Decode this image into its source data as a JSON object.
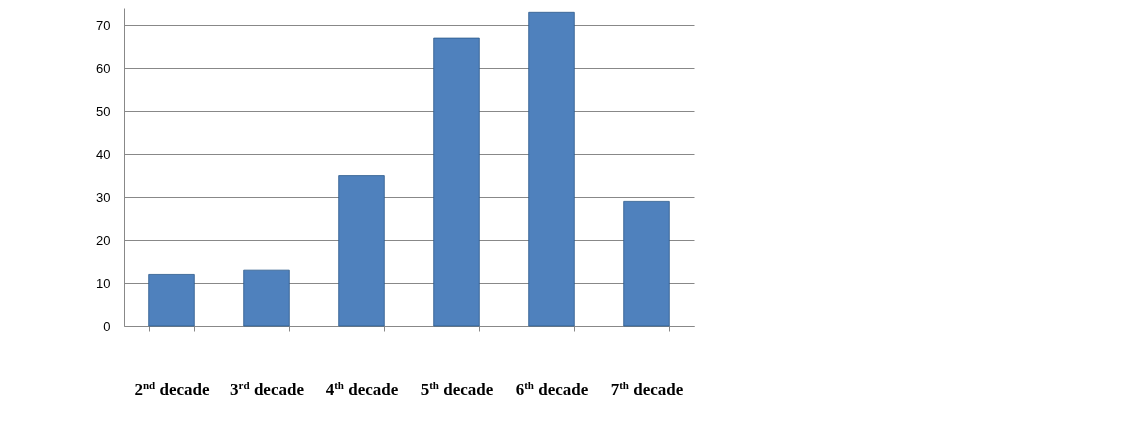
{
  "chart_data": {
    "type": "bar",
    "categories": [
      "2$^{nd}$ decade",
      "3$^{rd}$ decade",
      "4$^{th}$ decade",
      "5$^{th}$ decade",
      "6$^{th}$ decade",
      "7$^{th}$ decade"
    ],
    "values": [
      12,
      13,
      35,
      67,
      73,
      29
    ],
    "color": "#4f81bd",
    "ylim": [
      0,
      74
    ],
    "yticks": [
      0,
      10,
      20,
      30,
      40,
      50,
      60,
      70
    ],
    "grid": "y"
  }
}
